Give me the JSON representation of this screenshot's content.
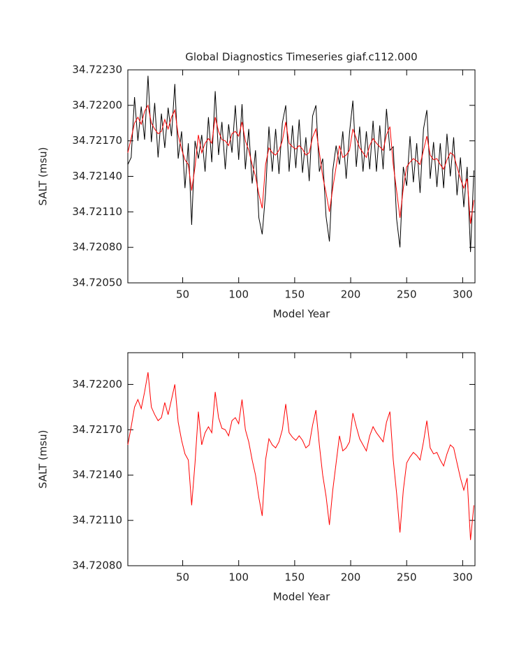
{
  "chart_data": [
    {
      "type": "line",
      "title": "Global Diagnostics Timeseries giaf.c112.000",
      "x_label": "Model Year",
      "y_label": "SALT (msu)",
      "x": [
        1,
        4,
        7,
        10,
        13,
        16,
        19,
        22,
        25,
        28,
        31,
        34,
        37,
        40,
        43,
        46,
        49,
        52,
        55,
        58,
        61,
        64,
        67,
        70,
        73,
        76,
        79,
        82,
        85,
        88,
        91,
        94,
        97,
        100,
        103,
        106,
        109,
        112,
        115,
        118,
        121,
        124,
        127,
        130,
        133,
        136,
        139,
        142,
        145,
        148,
        151,
        154,
        157,
        160,
        163,
        166,
        169,
        172,
        175,
        178,
        181,
        184,
        187,
        190,
        193,
        196,
        199,
        202,
        205,
        208,
        211,
        214,
        217,
        220,
        223,
        226,
        229,
        232,
        235,
        238,
        241,
        244,
        247,
        250,
        253,
        256,
        259,
        262,
        265,
        268,
        271,
        274,
        277,
        280,
        283,
        286,
        289,
        292,
        295,
        298,
        301,
        304,
        307,
        310
      ],
      "series": [
        {
          "color": "#000000",
          "values": [
            34.7215,
            34.72156,
            34.72207,
            34.7217,
            34.72199,
            34.72171,
            34.72225,
            34.72169,
            34.72202,
            34.72156,
            34.72193,
            34.72164,
            34.72198,
            34.72174,
            34.72218,
            34.72155,
            34.72178,
            34.7213,
            34.72168,
            34.72099,
            34.7217,
            34.72155,
            34.72175,
            34.72144,
            34.7219,
            34.72152,
            34.72212,
            34.72158,
            34.72186,
            34.72146,
            34.72184,
            34.7216,
            34.722,
            34.72154,
            34.72201,
            34.72146,
            34.7218,
            34.72134,
            34.72162,
            34.72105,
            34.72091,
            34.72126,
            34.72182,
            34.72144,
            34.7218,
            34.72142,
            34.72185,
            34.722,
            34.72144,
            34.72183,
            34.72147,
            34.72188,
            34.72143,
            34.72173,
            34.72136,
            34.72191,
            34.722,
            34.72144,
            34.72155,
            34.72106,
            34.72085,
            34.72145,
            34.72166,
            34.7215,
            34.72178,
            34.72138,
            34.72177,
            34.72204,
            34.72148,
            34.72182,
            34.72144,
            34.72178,
            34.72146,
            34.72187,
            34.72144,
            34.72183,
            34.72146,
            34.72197,
            34.72162,
            34.72165,
            34.72104,
            34.7208,
            34.72148,
            34.72132,
            34.72174,
            34.72135,
            34.72168,
            34.72126,
            34.7218,
            34.72196,
            34.72138,
            34.72169,
            34.72131,
            34.72168,
            34.7213,
            34.72176,
            34.7214,
            34.72173,
            34.72124,
            34.72156,
            34.72114,
            34.72148,
            34.72076,
            34.72145
          ]
        },
        {
          "color": "#ff0000",
          "values": [
            34.7216,
            34.72172,
            34.72185,
            34.7219,
            34.72184,
            34.72195,
            34.722,
            34.72185,
            34.7218,
            34.72176,
            34.72178,
            34.72188,
            34.7218,
            34.7219,
            34.72196,
            34.72175,
            34.72163,
            34.72154,
            34.7215,
            34.72128,
            34.72148,
            34.72175,
            34.7216,
            34.72168,
            34.72172,
            34.72168,
            34.7219,
            34.72178,
            34.72171,
            34.7217,
            34.72166,
            34.72176,
            34.72178,
            34.72174,
            34.72186,
            34.7217,
            34.72162,
            34.7215,
            34.7214,
            34.72125,
            34.72113,
            34.7215,
            34.72164,
            34.7216,
            34.72158,
            34.72162,
            34.7217,
            34.72186,
            34.72168,
            34.72165,
            34.72163,
            34.72166,
            34.72163,
            34.72158,
            34.7216,
            34.72173,
            34.7218,
            34.7216,
            34.7214,
            34.72126,
            34.7211,
            34.7213,
            34.72148,
            34.72166,
            34.72156,
            34.72158,
            34.72162,
            34.7218,
            34.72172,
            34.72164,
            34.7216,
            34.72156,
            34.72166,
            34.72172,
            34.72168,
            34.72165,
            34.72162,
            34.72175,
            34.72182,
            34.7215,
            34.72128,
            34.72105,
            34.7213,
            34.72148,
            34.72152,
            34.72155,
            34.72153,
            34.7215,
            34.72162,
            34.72174,
            34.72158,
            34.72154,
            34.72155,
            34.7215,
            34.72146,
            34.72154,
            34.7216,
            34.72158,
            34.72148,
            34.72138,
            34.7213,
            34.72138,
            34.721,
            34.7212
          ]
        }
      ],
      "xlim": [
        1,
        311
      ],
      "xticks": [
        50,
        100,
        150,
        200,
        250,
        300
      ],
      "ylim": [
        34.7205,
        34.7223
      ],
      "yticks": [
        {
          "value": 34.7205,
          "label": "34.72050"
        },
        {
          "value": 34.7208,
          "label": "34.72080"
        },
        {
          "value": 34.7211,
          "label": "34.72110"
        },
        {
          "value": 34.7214,
          "label": "34.72140"
        },
        {
          "value": 34.7217,
          "label": "34.72170"
        },
        {
          "value": 34.722,
          "label": "34.72200"
        },
        {
          "value": 34.7223,
          "label": "34.72230"
        }
      ]
    },
    {
      "type": "line",
      "x_label": "Model Year",
      "y_label": "SALT (msu)",
      "x": [
        1,
        4,
        7,
        10,
        13,
        16,
        19,
        22,
        25,
        28,
        31,
        34,
        37,
        40,
        43,
        46,
        49,
        52,
        55,
        58,
        61,
        64,
        67,
        70,
        73,
        76,
        79,
        82,
        85,
        88,
        91,
        94,
        97,
        100,
        103,
        106,
        109,
        112,
        115,
        118,
        121,
        124,
        127,
        130,
        133,
        136,
        139,
        142,
        145,
        148,
        151,
        154,
        157,
        160,
        163,
        166,
        169,
        172,
        175,
        178,
        181,
        184,
        187,
        190,
        193,
        196,
        199,
        202,
        205,
        208,
        211,
        214,
        217,
        220,
        223,
        226,
        229,
        232,
        235,
        238,
        241,
        244,
        247,
        250,
        253,
        256,
        259,
        262,
        265,
        268,
        271,
        274,
        277,
        280,
        283,
        286,
        289,
        292,
        295,
        298,
        301,
        304,
        307,
        310
      ],
      "series": [
        {
          "color": "#ff0000",
          "values": [
            34.7216,
            34.72172,
            34.72185,
            34.7219,
            34.72184,
            34.72195,
            34.72208,
            34.72185,
            34.7218,
            34.72176,
            34.72178,
            34.72188,
            34.7218,
            34.7219,
            34.722,
            34.72175,
            34.72163,
            34.72154,
            34.7215,
            34.7212,
            34.72148,
            34.72182,
            34.7216,
            34.72168,
            34.72172,
            34.72168,
            34.72195,
            34.72178,
            34.72171,
            34.7217,
            34.72166,
            34.72176,
            34.72178,
            34.72174,
            34.7219,
            34.7217,
            34.72162,
            34.7215,
            34.7214,
            34.72125,
            34.72113,
            34.7215,
            34.72164,
            34.7216,
            34.72158,
            34.72162,
            34.7217,
            34.72187,
            34.72168,
            34.72165,
            34.72163,
            34.72166,
            34.72163,
            34.72158,
            34.7216,
            34.72173,
            34.72183,
            34.7216,
            34.7214,
            34.72126,
            34.72107,
            34.7213,
            34.72148,
            34.72166,
            34.72156,
            34.72158,
            34.72162,
            34.72181,
            34.72172,
            34.72164,
            34.7216,
            34.72156,
            34.72166,
            34.72172,
            34.72168,
            34.72165,
            34.72162,
            34.72175,
            34.72182,
            34.7215,
            34.72128,
            34.72102,
            34.7213,
            34.72148,
            34.72152,
            34.72155,
            34.72153,
            34.7215,
            34.72162,
            34.72176,
            34.72158,
            34.72154,
            34.72155,
            34.7215,
            34.72146,
            34.72154,
            34.7216,
            34.72158,
            34.72148,
            34.72138,
            34.7213,
            34.72138,
            34.72097,
            34.7212
          ]
        }
      ],
      "xlim": [
        1,
        311
      ],
      "xticks": [
        50,
        100,
        150,
        200,
        250,
        300
      ],
      "ylim": [
        34.7208,
        34.72221
      ],
      "yticks": [
        {
          "value": 34.7208,
          "label": "34.72080"
        },
        {
          "value": 34.7211,
          "label": "34.72110"
        },
        {
          "value": 34.7214,
          "label": "34.72140"
        },
        {
          "value": 34.7217,
          "label": "34.72170"
        },
        {
          "value": 34.722,
          "label": "34.72200"
        }
      ]
    }
  ]
}
